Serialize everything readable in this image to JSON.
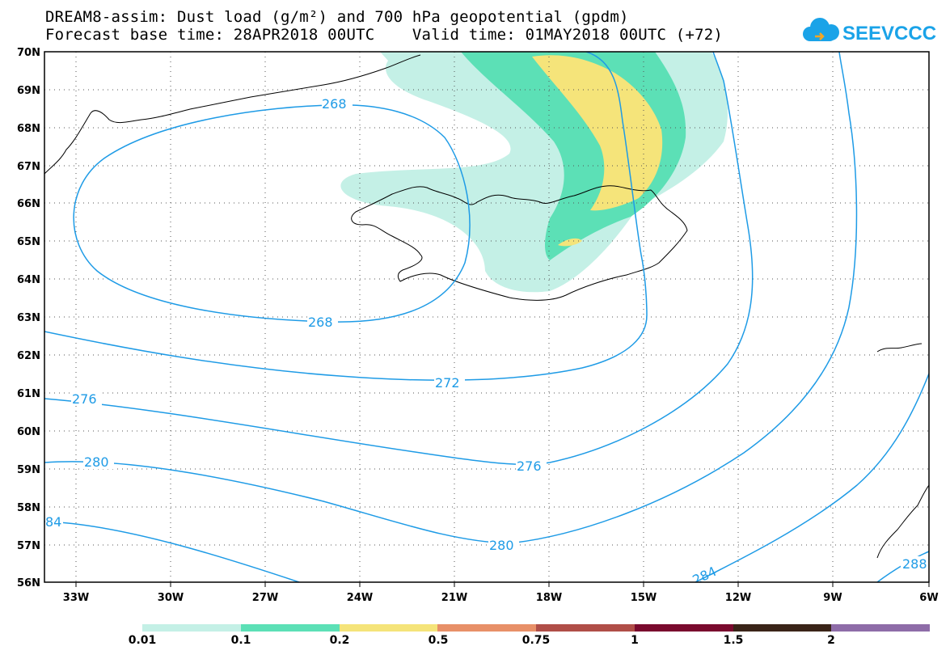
{
  "header": {
    "title_line1": "DREAM8-assim: Dust load (g/m²) and 700 hPa geopotential (gpdm)",
    "title_line2": "Forecast base time: 28APR2018 00UTC    Valid time: 01MAY2018 00UTC (+72)"
  },
  "logo": {
    "text": "SEEVCCC",
    "color": "#1aa3e8",
    "icon": "cloud-icon"
  },
  "axes": {
    "lat_labels": [
      "70N",
      "69N",
      "68N",
      "67N",
      "66N",
      "65N",
      "64N",
      "63N",
      "62N",
      "61N",
      "60N",
      "59N",
      "58N",
      "57N",
      "56N"
    ],
    "lon_labels": [
      "33W",
      "30W",
      "27W",
      "24W",
      "21W",
      "18W",
      "15W",
      "12W",
      "9W",
      "6W"
    ]
  },
  "contours": {
    "color": "#1e9be6",
    "labels": [
      "268",
      "268",
      "272",
      "276",
      "276",
      "280",
      "280",
      "284",
      "84",
      "288"
    ]
  },
  "legend": {
    "colors": [
      "#c4f0e6",
      "#5ce0b6",
      "#f5e47a",
      "#e89068",
      "#b04e48",
      "#7a0a2e",
      "#3a2418",
      "#8e6ca8"
    ],
    "ticks": [
      "0.01",
      "0.1",
      "0.2",
      "0.5",
      "0.75",
      "1",
      "1.5",
      "2"
    ]
  }
}
